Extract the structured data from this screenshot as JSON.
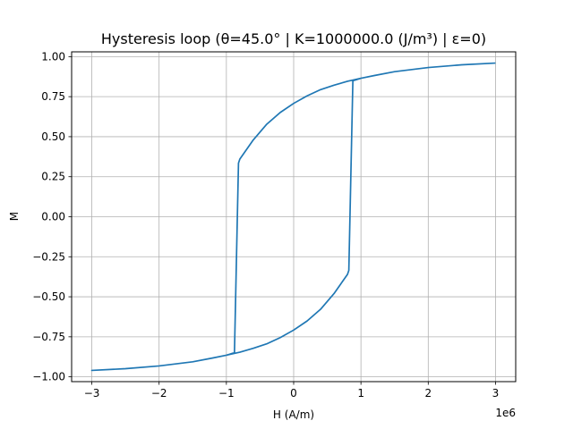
{
  "chart_data": {
    "type": "line",
    "title": "Hysteresis loop (θ=45.0° | K=1000000.0 (J/m³) | ε=0)",
    "xlabel": "H (A/m)",
    "ylabel": "M",
    "x_offset_label": "1e6",
    "xlim": [
      -3.3,
      3.3
    ],
    "ylim": [
      -1.03,
      1.03
    ],
    "x_scale": 1000000,
    "xticks": [
      -3,
      -2,
      -1,
      0,
      1,
      2,
      3
    ],
    "xtick_labels": [
      "−3",
      "−2",
      "−1",
      "0",
      "1",
      "2",
      "3"
    ],
    "yticks": [
      -1.0,
      -0.75,
      -0.5,
      -0.25,
      0.0,
      0.25,
      0.5,
      0.75,
      1.0
    ],
    "ytick_labels": [
      "−1.00",
      "−0.75",
      "−0.50",
      "−0.25",
      "0.00",
      "0.25",
      "0.50",
      "0.75",
      "1.00"
    ],
    "grid": true,
    "series_color": "#1f77b4",
    "series": [
      {
        "name": "",
        "x": [
          3.0,
          2.5,
          2.0,
          1.5,
          1.2,
          1.0,
          0.8,
          0.6,
          0.4,
          0.2,
          0.0,
          -0.2,
          -0.4,
          -0.6,
          -0.8,
          -0.82,
          -0.88,
          -0.9,
          -1.0,
          -1.2,
          -1.5,
          -2.0,
          -2.5,
          -3.0,
          -2.5,
          -2.0,
          -1.5,
          -1.2,
          -1.0,
          -0.8,
          -0.6,
          -0.4,
          -0.2,
          0.0,
          0.2,
          0.4,
          0.6,
          0.8,
          0.82,
          0.88,
          0.9,
          1.0,
          1.2,
          1.5,
          2.0,
          2.5,
          3.0
        ],
        "y": [
          0.96,
          0.949,
          0.932,
          0.906,
          0.882,
          0.865,
          0.846,
          0.822,
          0.794,
          0.755,
          0.708,
          0.651,
          0.578,
          0.48,
          0.36,
          0.335,
          -0.85,
          -0.852,
          -0.865,
          -0.882,
          -0.906,
          -0.932,
          -0.949,
          -0.96,
          -0.949,
          -0.932,
          -0.906,
          -0.882,
          -0.865,
          -0.846,
          -0.822,
          -0.794,
          -0.755,
          -0.708,
          -0.651,
          -0.578,
          -0.48,
          -0.36,
          -0.335,
          0.85,
          0.852,
          0.865,
          0.882,
          0.906,
          0.932,
          0.949,
          0.96
        ]
      }
    ]
  }
}
